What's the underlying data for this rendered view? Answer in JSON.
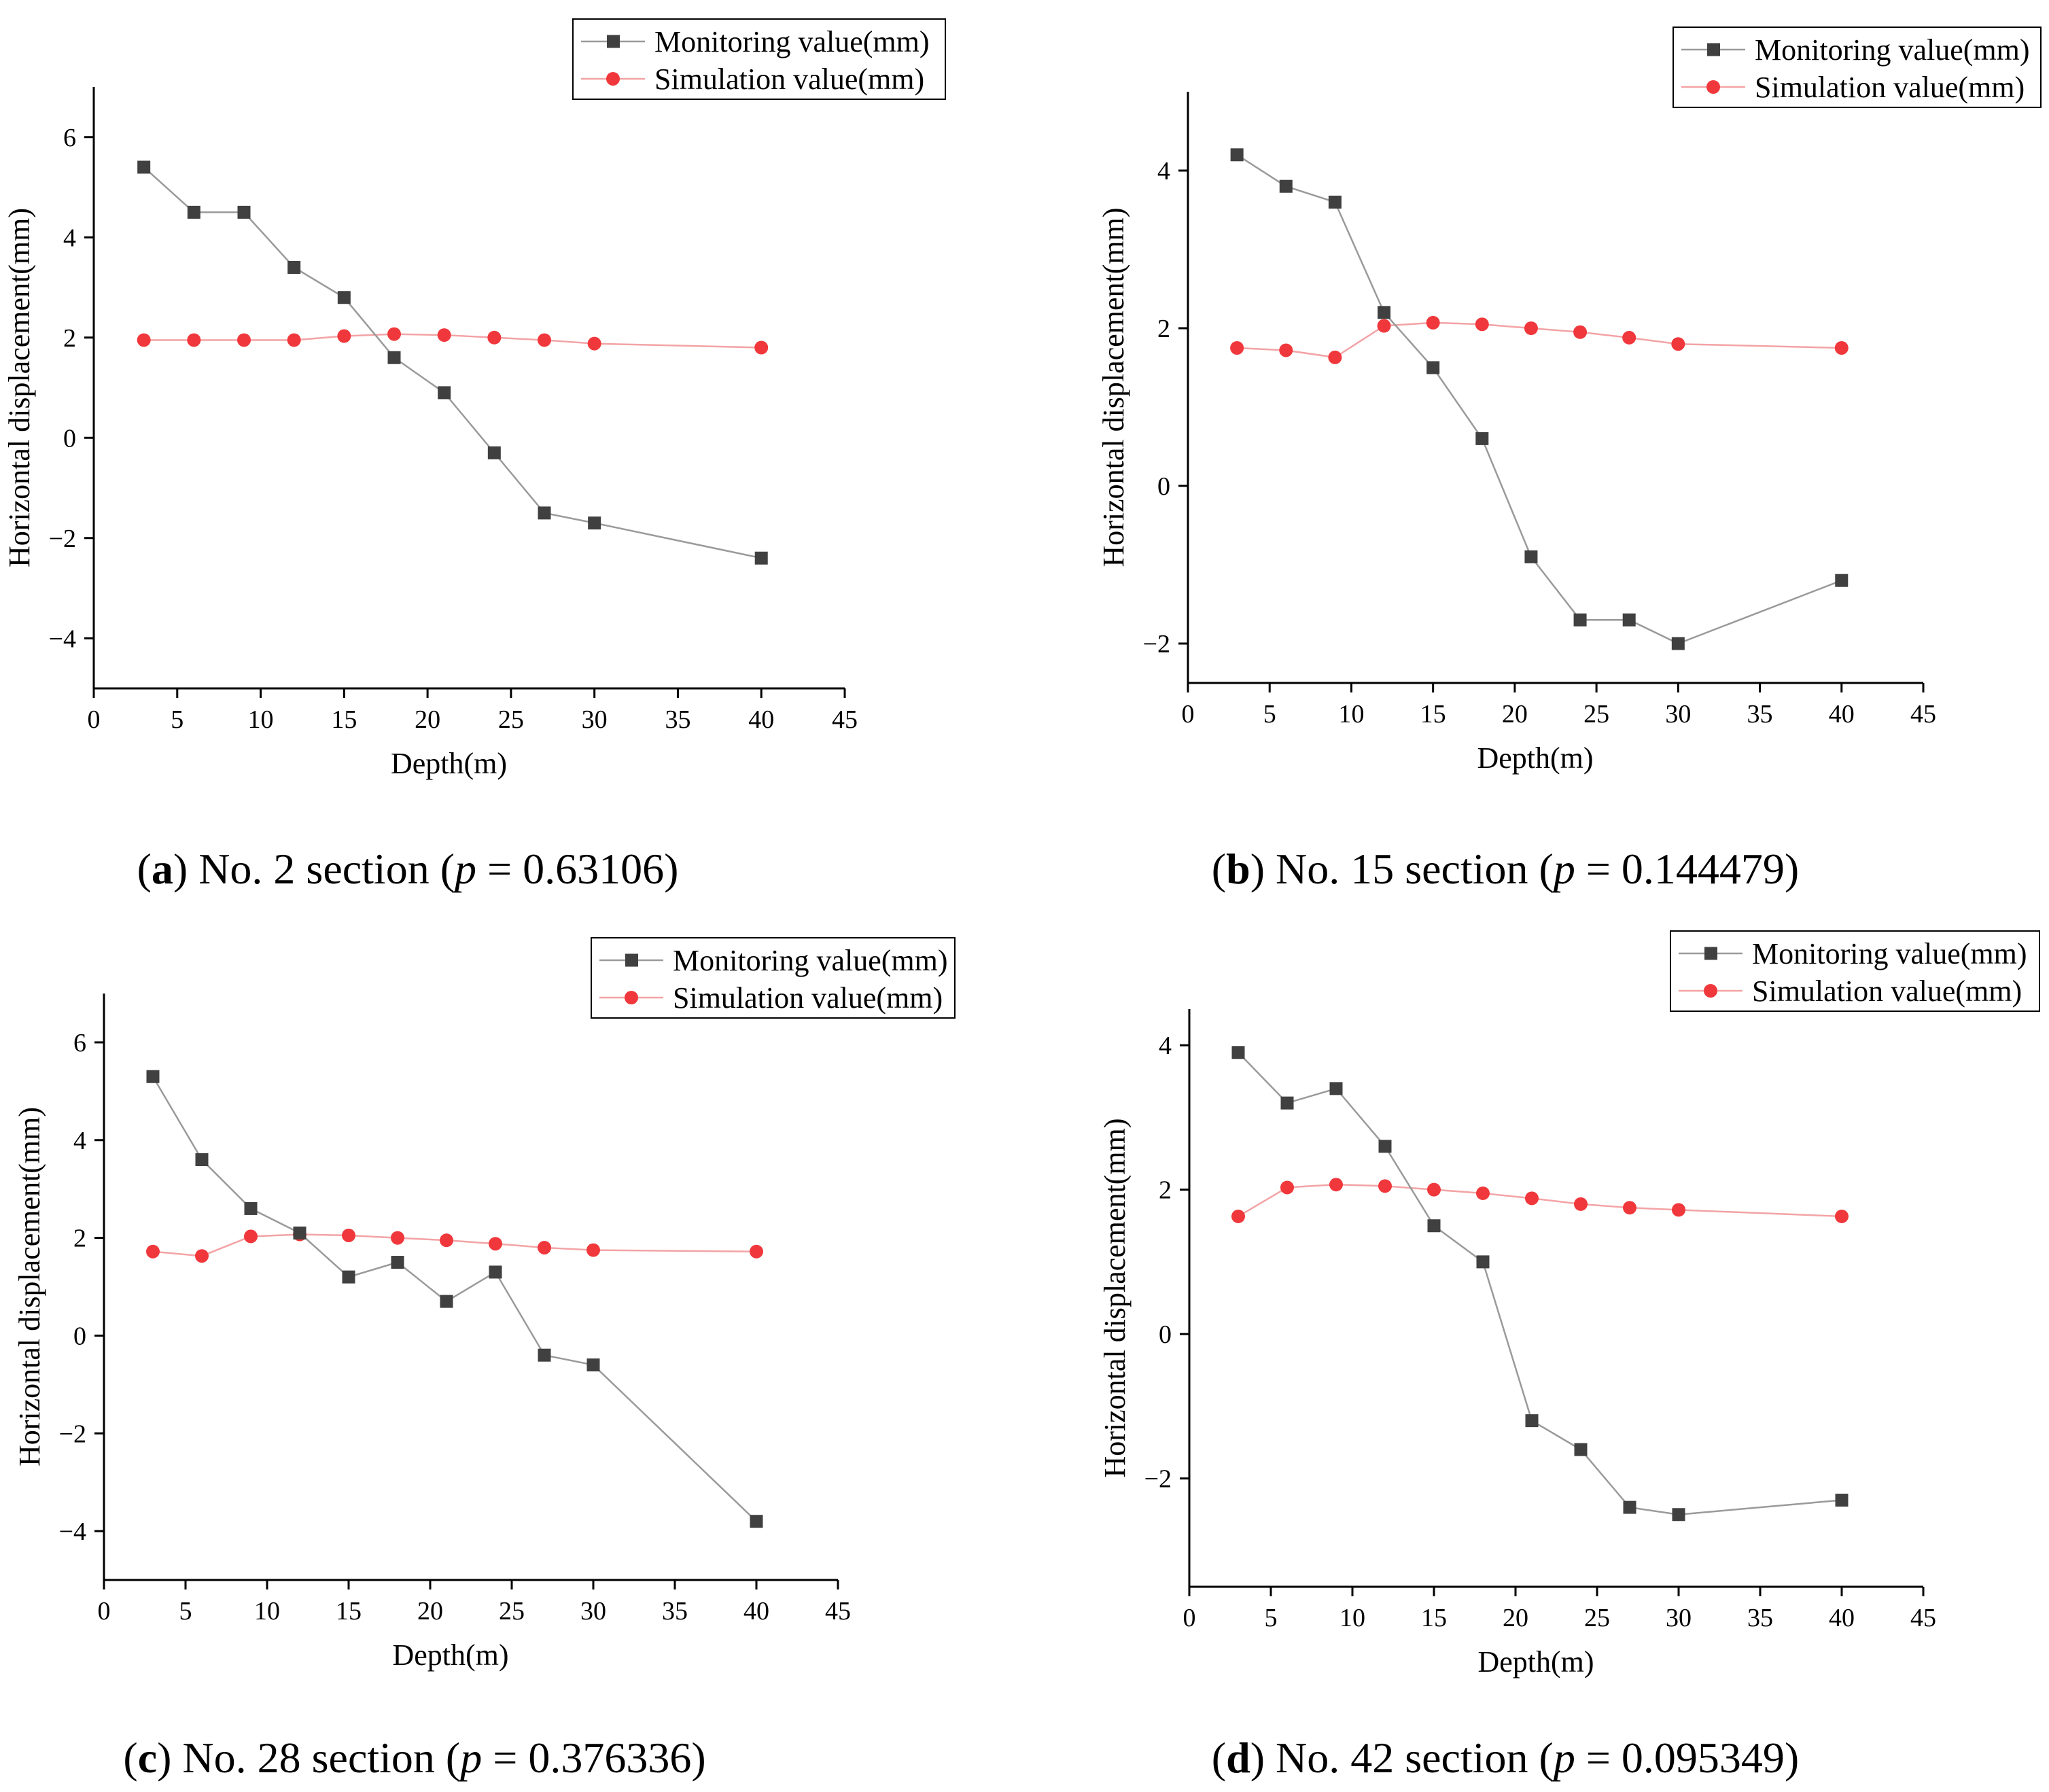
{
  "legend": {
    "monitoring": "Monitoring value(mm)",
    "simulation": "Simulation value(mm)"
  },
  "colors": {
    "monitoring": "#404040",
    "monitoring_line": "#9a9a9a",
    "simulation": "#f0383c",
    "simulation_line": "#f3a3a5",
    "axis": "#000000"
  },
  "chart_data": [
    {
      "type": "line",
      "panel": "a",
      "caption": {
        "letter": "a",
        "text": " No. 2 section (",
        "p": "p",
        "value": " = 0.63106)"
      },
      "xlabel": "Depth(m)",
      "ylabel": "Horizontal displacement(mm)",
      "xlim": [
        0,
        45
      ],
      "ylim": [
        -5,
        7
      ],
      "xticks": [
        0,
        5,
        10,
        15,
        20,
        25,
        30,
        35,
        40,
        45
      ],
      "yticks": [
        -4,
        -2,
        0,
        2,
        4,
        6
      ],
      "x": [
        3,
        6,
        9,
        12,
        15,
        18,
        21,
        24,
        27,
        30,
        40
      ],
      "series": [
        {
          "name": "Monitoring value(mm)",
          "values": [
            5.4,
            4.5,
            4.5,
            3.4,
            2.8,
            1.6,
            0.9,
            -0.3,
            -1.5,
            -1.7,
            -2.4
          ]
        },
        {
          "name": "Simulation value(mm)",
          "values": [
            1.95,
            1.95,
            1.95,
            1.95,
            2.03,
            2.07,
            2.05,
            2.0,
            1.95,
            1.88,
            1.8
          ]
        }
      ],
      "legend_position": "top-right"
    },
    {
      "type": "line",
      "panel": "b",
      "caption": {
        "letter": "b",
        "text": " No. 15 section (",
        "p": "p",
        "value": " = 0.144479)"
      },
      "xlabel": "Depth(m)",
      "ylabel": "Horizontal displacement(mm)",
      "xlim": [
        0,
        45
      ],
      "ylim": [
        -2.5,
        5
      ],
      "xticks": [
        0,
        5,
        10,
        15,
        20,
        25,
        30,
        35,
        40,
        45
      ],
      "yticks": [
        -2,
        0,
        2,
        4
      ],
      "x": [
        3,
        6,
        9,
        12,
        15,
        18,
        21,
        24,
        27,
        30,
        40
      ],
      "series": [
        {
          "name": "Monitoring value(mm)",
          "values": [
            4.2,
            3.8,
            3.6,
            2.2,
            1.5,
            0.6,
            -0.9,
            -1.7,
            -1.7,
            -2.0,
            -1.2
          ]
        },
        {
          "name": "Simulation value(mm)",
          "values": [
            1.75,
            1.72,
            1.63,
            2.03,
            2.07,
            2.05,
            2.0,
            1.95,
            1.88,
            1.8,
            1.75
          ]
        }
      ],
      "legend_position": "top-right"
    },
    {
      "type": "line",
      "panel": "c",
      "caption": {
        "letter": "c",
        "text": " No. 28 section (",
        "p": "p",
        "value": " = 0.376336)"
      },
      "xlabel": "Depth(m)",
      "ylabel": "Horizontal displacement(mm)",
      "xlim": [
        0,
        45
      ],
      "ylim": [
        -5,
        7
      ],
      "xticks": [
        0,
        5,
        10,
        15,
        20,
        25,
        30,
        35,
        40,
        45
      ],
      "yticks": [
        -4,
        -2,
        0,
        2,
        4,
        6
      ],
      "x": [
        3,
        6,
        9,
        12,
        15,
        18,
        21,
        24,
        27,
        30,
        40
      ],
      "series": [
        {
          "name": "Monitoring value(mm)",
          "values": [
            5.3,
            3.6,
            2.6,
            2.1,
            1.2,
            1.5,
            0.7,
            1.3,
            -0.4,
            -0.6,
            -3.8
          ]
        },
        {
          "name": "Simulation value(mm)",
          "values": [
            1.72,
            1.63,
            2.03,
            2.07,
            2.05,
            2.0,
            1.95,
            1.88,
            1.8,
            1.75,
            1.72
          ]
        }
      ],
      "legend_position": "top-right"
    },
    {
      "type": "line",
      "panel": "d",
      "caption": {
        "letter": "d",
        "text": " No. 42 section (",
        "p": "p",
        "value": " = 0.095349)"
      },
      "xlabel": "Depth(m)",
      "ylabel": "Horizontal displacement(mm)",
      "xlim": [
        0,
        45
      ],
      "ylim": [
        -3.5,
        4.5
      ],
      "xticks": [
        0,
        5,
        10,
        15,
        20,
        25,
        30,
        35,
        40,
        45
      ],
      "yticks": [
        -2,
        0,
        2,
        4
      ],
      "x": [
        3,
        6,
        9,
        12,
        15,
        18,
        21,
        24,
        27,
        30,
        40
      ],
      "series": [
        {
          "name": "Monitoring value(mm)",
          "values": [
            3.9,
            3.2,
            3.4,
            2.6,
            1.5,
            1.0,
            -1.2,
            -1.6,
            -2.4,
            -2.5,
            -2.3
          ]
        },
        {
          "name": "Simulation value(mm)",
          "values": [
            1.63,
            2.03,
            2.07,
            2.05,
            2.0,
            1.95,
            1.88,
            1.8,
            1.75,
            1.72,
            1.63
          ]
        }
      ],
      "legend_position": "top-right"
    }
  ]
}
